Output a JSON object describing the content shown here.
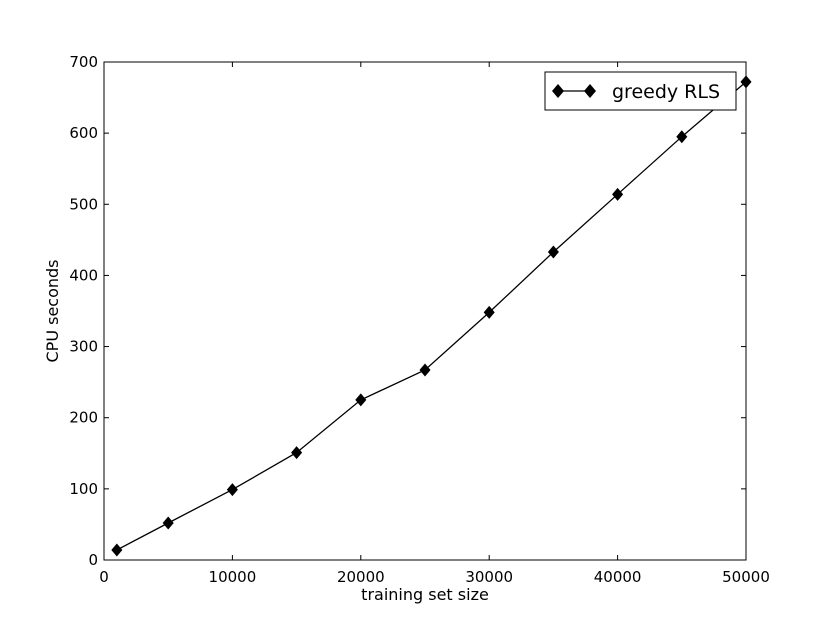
{
  "chart_data": {
    "type": "line",
    "title": "",
    "xlabel": "training set size",
    "ylabel": "CPU seconds",
    "xlim": [
      0,
      50000
    ],
    "ylim": [
      0,
      700
    ],
    "xticks": [
      0,
      10000,
      20000,
      30000,
      40000,
      50000
    ],
    "yticks": [
      0,
      100,
      200,
      300,
      400,
      500,
      600,
      700
    ],
    "grid": false,
    "legend_position": "top-right",
    "series": [
      {
        "name": "greedy RLS",
        "color": "#000000",
        "marker": "diamond",
        "x": [
          1000,
          5000,
          10000,
          15000,
          20000,
          25000,
          30000,
          35000,
          40000,
          45000,
          50000
        ],
        "y": [
          14,
          52,
          99,
          151,
          225,
          267,
          348,
          433,
          514,
          595,
          672
        ]
      }
    ]
  }
}
